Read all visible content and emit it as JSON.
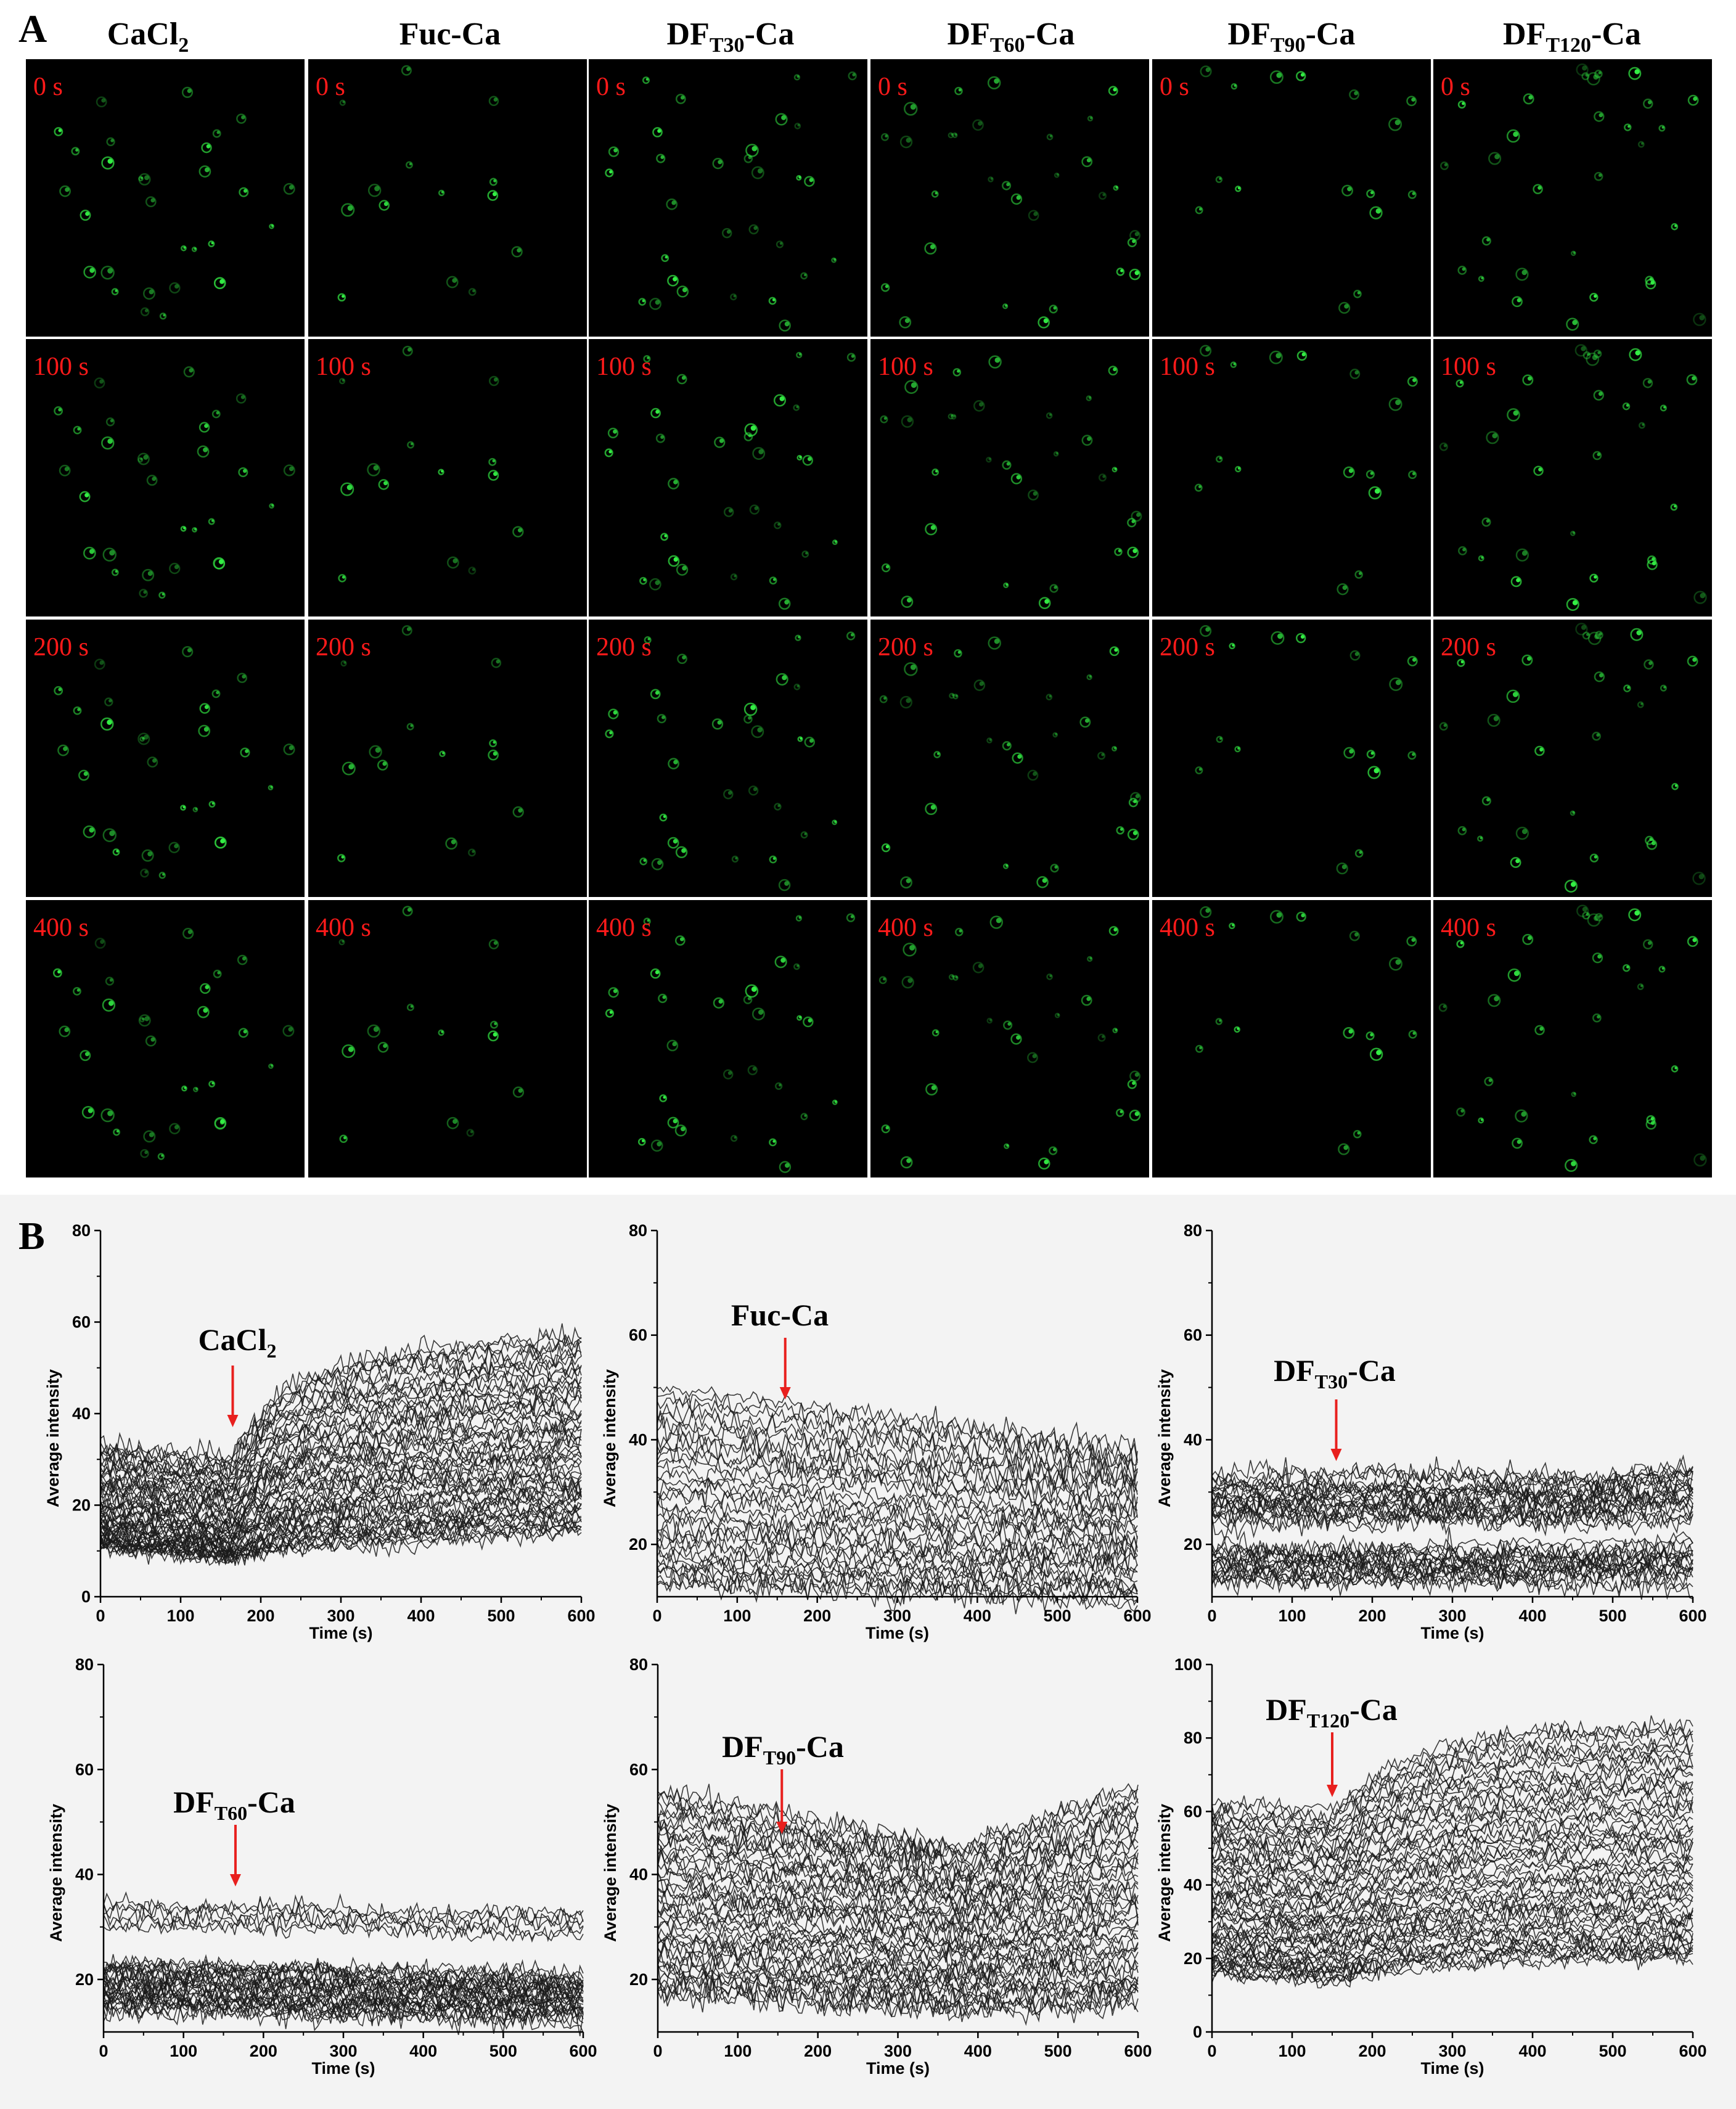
{
  "panel_a": {
    "label": "A",
    "columns": [
      {
        "main": "CaCl",
        "sub": "2",
        "suffix": ""
      },
      {
        "main": "Fuc-Ca",
        "sub": "",
        "suffix": ""
      },
      {
        "main": "DF",
        "sub": "T30",
        "suffix": "-Ca"
      },
      {
        "main": "DF",
        "sub": "T60",
        "suffix": "-Ca"
      },
      {
        "main": "DF",
        "sub": "T90",
        "suffix": "-Ca"
      },
      {
        "main": "DF",
        "sub": "T120",
        "suffix": "-Ca"
      }
    ],
    "time_labels": [
      "0 s",
      "100 s",
      "200 s",
      "400 s"
    ],
    "image_background": "#000000",
    "fluorescence_color": "#33ee44"
  },
  "panel_b": {
    "label": "B",
    "line_color": "#1a1a1a",
    "arrow_color": "#e8201e"
  },
  "chart_data": [
    {
      "type": "line",
      "annotation": {
        "main": "CaCl",
        "sub": "2",
        "suffix": ""
      },
      "arrow_x": 165,
      "xlabel": "Time (s)",
      "ylabel": "Average intensity",
      "xlim": [
        0,
        600
      ],
      "ylim": [
        0,
        80
      ],
      "xticks": [
        "0",
        "100",
        "200",
        "300",
        "400",
        "500",
        "600"
      ],
      "yticks": [
        "0",
        "20",
        "40",
        "60",
        "80"
      ],
      "series_summary": {
        "count": 60,
        "time_of_change_s": 165,
        "before_range": [
          11,
          35
        ],
        "after_600s_range": [
          14,
          55
        ],
        "trend": "increase after addition"
      }
    },
    {
      "type": "line",
      "annotation": {
        "main": "Fuc-Ca",
        "sub": "",
        "suffix": ""
      },
      "arrow_x": 160,
      "xlabel": "Time (s)",
      "ylabel": "Average intensity",
      "xlim": [
        0,
        600
      ],
      "ylim": [
        10,
        80
      ],
      "xticks": [
        "0",
        "100",
        "200",
        "300",
        "400",
        "500",
        "600"
      ],
      "yticks": [
        "20",
        "40",
        "60",
        "80"
      ],
      "series_summary": {
        "count": 35,
        "start_range": [
          12,
          50
        ],
        "end_range": [
          11,
          37
        ],
        "trend": "slow decrease"
      }
    },
    {
      "type": "line",
      "annotation": {
        "main": "DF",
        "sub": "T30",
        "suffix": "-Ca"
      },
      "arrow_x": 155,
      "xlabel": "Time (s)",
      "ylabel": "Average intensity",
      "xlim": [
        0,
        600
      ],
      "ylim": [
        10,
        80
      ],
      "xticks": [
        "0",
        "100",
        "200",
        "300",
        "400",
        "500",
        "600"
      ],
      "yticks": [
        "20",
        "40",
        "60",
        "80"
      ],
      "series_summary": {
        "count": 40,
        "start_range": [
          12,
          32
        ],
        "end_range": [
          12,
          36
        ],
        "trend": "flat"
      }
    },
    {
      "type": "line",
      "annotation": {
        "main": "DF",
        "sub": "T60",
        "suffix": "-Ca"
      },
      "arrow_x": 165,
      "xlabel": "Time (s)",
      "ylabel": "Average intensity",
      "xlim": [
        0,
        600
      ],
      "ylim": [
        10,
        80
      ],
      "xticks": [
        "0",
        "100",
        "200",
        "300",
        "400",
        "500",
        "600"
      ],
      "yticks": [
        "20",
        "40",
        "60",
        "80"
      ],
      "series_summary": {
        "count": 35,
        "start_range": [
          13,
          35
        ],
        "end_range": [
          12,
          33
        ],
        "trend": "flat"
      }
    },
    {
      "type": "line",
      "annotation": {
        "main": "DF",
        "sub": "T90",
        "suffix": "-Ca"
      },
      "arrow_x": 155,
      "xlabel": "Time (s)",
      "ylabel": "Average intensity",
      "xlim": [
        0,
        600
      ],
      "ylim": [
        10,
        80
      ],
      "xticks": [
        "0",
        "100",
        "200",
        "300",
        "400",
        "500",
        "600"
      ],
      "yticks": [
        "20",
        "40",
        "60",
        "80"
      ],
      "series_summary": {
        "count": 50,
        "start_range": [
          17,
          56
        ],
        "end_range": [
          14,
          57
        ],
        "trend": "dip then recovery"
      }
    },
    {
      "type": "line",
      "annotation": {
        "main": "DF",
        "sub": "T120",
        "suffix": "-Ca"
      },
      "arrow_x": 150,
      "xlabel": "Time (s)",
      "ylabel": "Average intensity",
      "xlim": [
        0,
        600
      ],
      "ylim": [
        0,
        100
      ],
      "xticks": [
        "0",
        "100",
        "200",
        "300",
        "400",
        "500",
        "600"
      ],
      "yticks": [
        "0",
        "20",
        "40",
        "60",
        "80",
        "100"
      ],
      "series_summary": {
        "count": 60,
        "time_of_change_s": 150,
        "before_range": [
          15,
          63
        ],
        "after_600s_range": [
          22,
          84
        ],
        "trend": "increase after addition"
      }
    }
  ]
}
